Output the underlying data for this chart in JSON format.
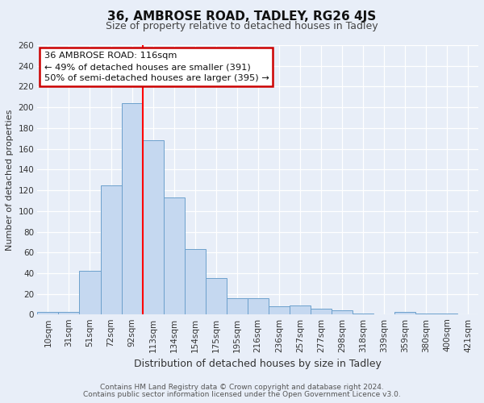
{
  "title": "36, AMBROSE ROAD, TADLEY, RG26 4JS",
  "subtitle": "Size of property relative to detached houses in Tadley",
  "xlabel": "Distribution of detached houses by size in Tadley",
  "ylabel": "Number of detached properties",
  "categories": [
    "10sqm",
    "31sqm",
    "51sqm",
    "72sqm",
    "92sqm",
    "113sqm",
    "134sqm",
    "154sqm",
    "175sqm",
    "195sqm",
    "216sqm",
    "236sqm",
    "257sqm",
    "277sqm",
    "298sqm",
    "318sqm",
    "339sqm",
    "359sqm",
    "380sqm",
    "400sqm",
    "421sqm"
  ],
  "values": [
    3,
    3,
    42,
    125,
    204,
    168,
    113,
    63,
    35,
    16,
    16,
    8,
    9,
    6,
    4,
    1,
    0,
    3,
    1,
    1,
    0
  ],
  "bar_color": "#c5d8f0",
  "bar_edge_color": "#6ca0cc",
  "red_line_x": 4.5,
  "ylim": [
    0,
    260
  ],
  "yticks": [
    0,
    20,
    40,
    60,
    80,
    100,
    120,
    140,
    160,
    180,
    200,
    220,
    240,
    260
  ],
  "annotation_title": "36 AMBROSE ROAD: 116sqm",
  "annotation_line1": "← 49% of detached houses are smaller (391)",
  "annotation_line2": "50% of semi-detached houses are larger (395) →",
  "annotation_box_facecolor": "#ffffff",
  "annotation_box_edgecolor": "#cc0000",
  "footer1": "Contains HM Land Registry data © Crown copyright and database right 2024.",
  "footer2": "Contains public sector information licensed under the Open Government Licence v3.0.",
  "bg_color": "#e8eef8",
  "grid_color": "#ffffff",
  "title_fontsize": 11,
  "subtitle_fontsize": 9,
  "xlabel_fontsize": 9,
  "ylabel_fontsize": 8,
  "tick_fontsize": 7.5,
  "footer_fontsize": 6.5
}
